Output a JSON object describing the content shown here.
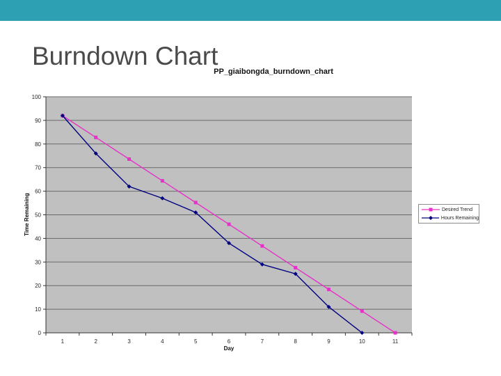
{
  "slide": {
    "title": "Burndown Chart",
    "accent_color": "#2ea0b4",
    "title_color": "#4a4a4a",
    "background": "#ffffff"
  },
  "chart_data": {
    "type": "line",
    "title": "PP_giaibongda_burndown_chart",
    "xlabel": "Day",
    "ylabel": "Time Remaining",
    "categories": [
      "1",
      "2",
      "3",
      "4",
      "5",
      "6",
      "7",
      "8",
      "9",
      "10",
      "11"
    ],
    "ylim": [
      0,
      100
    ],
    "ytick_step": 10,
    "grid": true,
    "plot_bg": "#c0c0c0",
    "grid_color": "#6a6a6a",
    "axis_color": "#333333",
    "tick_label_color": "#262626",
    "legend_position": "right",
    "series": [
      {
        "name": "Desired Trend",
        "color": "#e632c8",
        "marker": "square",
        "values": [
          92,
          82.8,
          73.6,
          64.4,
          55.2,
          46,
          36.8,
          27.6,
          18.4,
          9.2,
          0
        ]
      },
      {
        "name": "Hours Remaining",
        "color": "#000080",
        "marker": "diamond",
        "values": [
          92,
          76,
          62,
          57,
          51,
          38,
          29,
          25,
          11,
          0
        ]
      }
    ]
  }
}
